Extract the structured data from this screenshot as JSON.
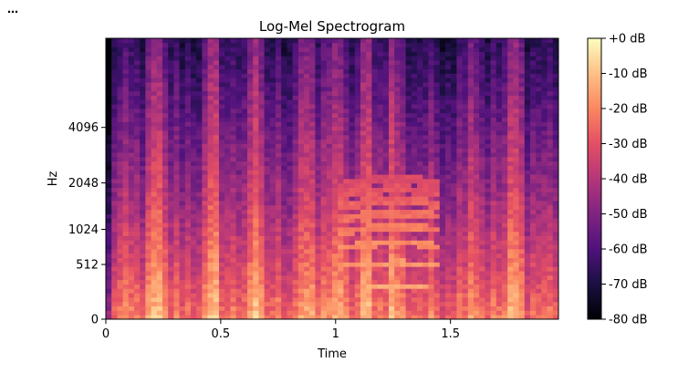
{
  "menu": {
    "glyph": "⋯"
  },
  "chart_data": {
    "type": "heatmap",
    "title": "Log-Mel Spectrogram",
    "xlabel": "Time",
    "ylabel": "Hz",
    "xlim": [
      0,
      1.97
    ],
    "x_ticks": [
      0,
      0.5,
      1,
      1.5
    ],
    "x_tick_labels": [
      "0",
      "0.5",
      "1",
      "1.5"
    ],
    "y_scale": "mel",
    "y_max_hz": 11025,
    "y_ticks": [
      0,
      512,
      1024,
      2048,
      4096
    ],
    "y_tick_labels": [
      "0",
      "512",
      "1024",
      "2048",
      "4096"
    ],
    "colormap": "magma",
    "colorbar": {
      "range_db": [
        -80,
        0
      ],
      "ticks": [
        0,
        -10,
        -20,
        -30,
        -40,
        -50,
        -60,
        -70,
        -80
      ],
      "tick_labels": [
        "+0 dB",
        "-10 dB",
        "-20 dB",
        "-30 dB",
        "-40 dB",
        "-50 dB",
        "-60 dB",
        "-70 dB",
        "-80 dB"
      ]
    },
    "time_frames": 80,
    "mel_bins": 64,
    "bright_columns_s": [
      0.22,
      0.47,
      0.64,
      0.86,
      0.99,
      1.14,
      1.25,
      1.59,
      1.78
    ],
    "harmonic_event": {
      "start_s": 1.0,
      "end_s": 1.45,
      "fundamental_hz": 240,
      "num_harmonics": 8,
      "level_db": -12
    },
    "grid": false
  }
}
